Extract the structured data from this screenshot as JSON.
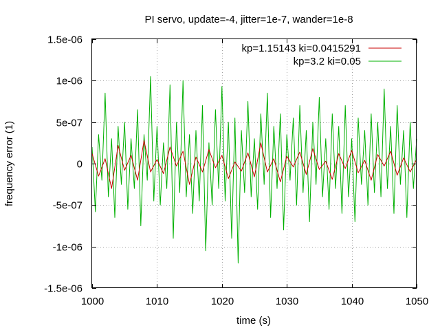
{
  "chart_data": {
    "type": "line",
    "title": "PI servo, update=-4, jitter=1e-7, wander=1e-8",
    "xlabel": "time (s)",
    "ylabel": "frequency error (1)",
    "xlim": [
      1000,
      1050
    ],
    "ylim": [
      -1.5e-06,
      1.5e-06
    ],
    "xticks": [
      1000,
      1010,
      1020,
      1030,
      1040,
      1050
    ],
    "xtick_labels": [
      "1000",
      "1010",
      "1020",
      "1030",
      "1040",
      "1050"
    ],
    "yticks": [
      1.5e-06,
      1e-06,
      5e-07,
      0,
      -5e-07,
      -1e-06,
      -1.5e-06
    ],
    "ytick_labels": [
      "1.5e-06",
      "1e-06",
      "5e-07",
      "0",
      "-5e-07",
      "-1e-06",
      "-1.5e-06"
    ],
    "grid": true,
    "legend_position": "top-right",
    "series": [
      {
        "name": "kp=1.15143 ki=0.0415291",
        "color": "#c80000",
        "x": [
          1000,
          1001,
          1002,
          1003,
          1004,
          1005,
          1006,
          1007,
          1008,
          1009,
          1010,
          1011,
          1012,
          1013,
          1014,
          1015,
          1016,
          1017,
          1018,
          1019,
          1020,
          1021,
          1022,
          1023,
          1024,
          1025,
          1026,
          1027,
          1028,
          1029,
          1030,
          1031,
          1032,
          1033,
          1034,
          1035,
          1036,
          1037,
          1038,
          1039,
          1040,
          1041,
          1042,
          1043,
          1044,
          1045,
          1046,
          1047,
          1048,
          1049,
          1050
        ],
        "values": [
          1.2e-07,
          -1.5e-07,
          6e-08,
          -3e-07,
          2.2e-07,
          -8e-08,
          1e-07,
          -2e-07,
          2.8e-07,
          -1e-07,
          5e-08,
          -1.2e-07,
          2e-07,
          -3e-08,
          1.5e-07,
          -2.5e-07,
          8e-08,
          -1e-07,
          1.7e-07,
          -5e-08,
          1e-07,
          -1.8e-07,
          2e-08,
          -9e-08,
          1.3e-07,
          -1.6e-07,
          2.5e-07,
          -1e-07,
          6e-08,
          -2.2e-07,
          9e-08,
          -4e-08,
          1.4e-07,
          -1.3e-07,
          1.8e-07,
          -7e-08,
          3e-08,
          -1.9e-07,
          1.2e-07,
          -6e-08,
          1.6e-07,
          -1.1e-07,
          4e-08,
          -2e-07,
          1.1e-07,
          -3e-08,
          1.5e-07,
          -1.4e-07,
          7e-08,
          -1e-07,
          5e-08
        ]
      },
      {
        "name": "kp=3.2 ki=0.05",
        "color": "#00b000",
        "x": [
          1000,
          1000.5,
          1001,
          1001.5,
          1002,
          1002.5,
          1003,
          1003.5,
          1004,
          1004.5,
          1005,
          1005.5,
          1006,
          1006.5,
          1007,
          1007.5,
          1008,
          1008.5,
          1009,
          1009.5,
          1010,
          1010.5,
          1011,
          1011.5,
          1012,
          1012.5,
          1013,
          1013.5,
          1014,
          1014.5,
          1015,
          1015.5,
          1016,
          1016.5,
          1017,
          1017.5,
          1018,
          1018.5,
          1019,
          1019.5,
          1020,
          1020.5,
          1021,
          1021.5,
          1022,
          1022.5,
          1023,
          1023.5,
          1024,
          1024.5,
          1025,
          1025.5,
          1026,
          1026.5,
          1027,
          1027.5,
          1028,
          1028.5,
          1029,
          1029.5,
          1030,
          1030.5,
          1031,
          1031.5,
          1032,
          1032.5,
          1033,
          1033.5,
          1034,
          1034.5,
          1035,
          1035.5,
          1036,
          1036.5,
          1037,
          1037.5,
          1038,
          1038.5,
          1039,
          1039.5,
          1040,
          1040.5,
          1041,
          1041.5,
          1042,
          1042.5,
          1043,
          1043.5,
          1044,
          1044.5,
          1045,
          1045.5,
          1046,
          1046.5,
          1047,
          1047.5,
          1048,
          1048.5,
          1049,
          1049.5,
          1050
        ],
        "values": [
          2e-07,
          -5.8e-07,
          3.5e-07,
          -2e-07,
          8.5e-07,
          -4e-07,
          3e-07,
          -6.5e-07,
          4.5e-07,
          -2.5e-07,
          5e-07,
          -5.5e-07,
          3e-07,
          -3e-07,
          6.5e-07,
          -7.5e-07,
          3.5e-07,
          -2e-07,
          1.05e-06,
          -4.5e-07,
          4.5e-07,
          -5e-07,
          2.5e-07,
          -3e-07,
          9.5e-07,
          -9e-07,
          5e-07,
          -3.5e-07,
          1e-06,
          -4e-07,
          3.5e-07,
          -6e-07,
          4e-07,
          -4.5e-07,
          7e-07,
          -1.05e-06,
          2.5e-07,
          -5e-07,
          6.5e-07,
          -3e-07,
          9.3e-07,
          -4.5e-07,
          5e-07,
          -9e-07,
          5.5e-07,
          -1.2e-06,
          4e-07,
          -3.5e-07,
          7.5e-07,
          -4e-07,
          3e-07,
          -5.5e-07,
          6e-07,
          -2.5e-07,
          8.5e-07,
          -6.5e-07,
          4.5e-07,
          -3e-07,
          6e-07,
          -8e-07,
          3.5e-07,
          -2e-07,
          5.5e-07,
          -5e-07,
          7e-07,
          -3.5e-07,
          4e-07,
          -7e-07,
          5e-07,
          -2.5e-07,
          8e-07,
          -4e-07,
          3e-07,
          -5.5e-07,
          6e-07,
          -3e-07,
          4.5e-07,
          -6e-07,
          7e-07,
          -4e-07,
          3e-07,
          -7e-07,
          5.5e-07,
          -2.5e-07,
          4e-07,
          -5e-07,
          6e-07,
          -3.5e-07,
          5e-07,
          -4e-07,
          9e-07,
          -3e-07,
          4.5e-07,
          -6e-07,
          7e-07,
          -2.5e-07,
          4e-07,
          -6.5e-07,
          5e-07,
          -3e-07,
          3e-07
        ]
      }
    ]
  }
}
